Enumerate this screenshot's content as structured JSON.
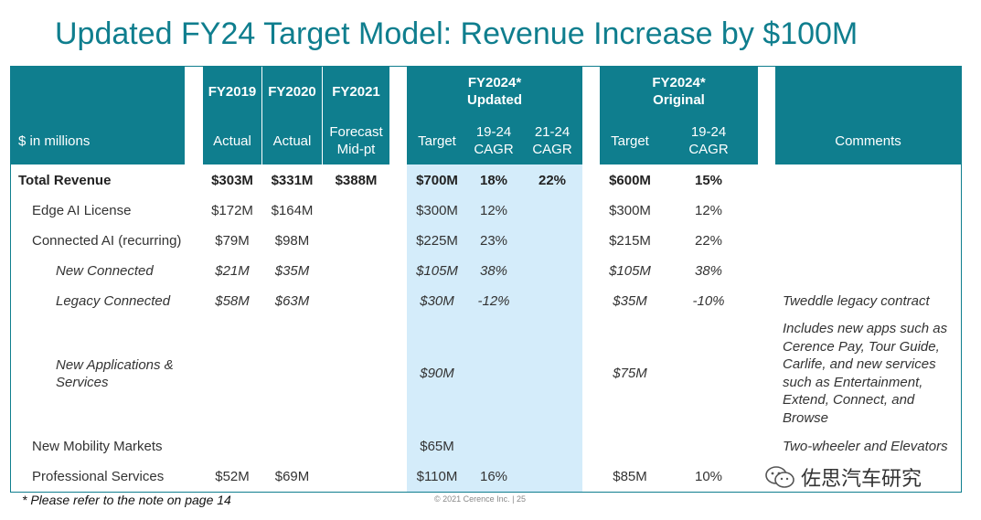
{
  "title": "Updated FY24 Target Model: Revenue Increase by $100M",
  "header": {
    "units_label": "$ in millions",
    "fy2019": "FY2019",
    "fy2020": "FY2020",
    "fy2021": "FY2021",
    "fy2024_updated": "FY2024*\nUpdated",
    "fy2024_original": "FY2024*\nOriginal",
    "actual_2019": "Actual",
    "actual_2020": "Actual",
    "forecast": "Forecast\nMid-pt",
    "target_updated": "Target",
    "cagr_19_24_updated": "19-24\nCAGR",
    "cagr_21_24_updated": "21-24\nCAGR",
    "target_original": "Target",
    "cagr_19_24_original": "19-24\nCAGR",
    "comments": "Comments"
  },
  "rows": [
    {
      "label": "Total Revenue",
      "fy19": "$303M",
      "fy20": "$331M",
      "fy21": "$388M",
      "tgt": "$700M",
      "c1924": "18%",
      "c2124": "22%",
      "otgt": "$600M",
      "oc": "15%",
      "comment": ""
    },
    {
      "label": "Edge AI License",
      "fy19": "$172M",
      "fy20": "$164M",
      "fy21": "",
      "tgt": "$300M",
      "c1924": "12%",
      "c2124": "",
      "otgt": "$300M",
      "oc": "12%",
      "comment": ""
    },
    {
      "label": "Connected AI (recurring)",
      "fy19": "$79M",
      "fy20": "$98M",
      "fy21": "",
      "tgt": "$225M",
      "c1924": "23%",
      "c2124": "",
      "otgt": "$215M",
      "oc": "22%",
      "comment": ""
    },
    {
      "label": "New Connected",
      "fy19": "$21M",
      "fy20": "$35M",
      "fy21": "",
      "tgt": "$105M",
      "c1924": "38%",
      "c2124": "",
      "otgt": "$105M",
      "oc": "38%",
      "comment": ""
    },
    {
      "label": "Legacy Connected",
      "fy19": "$58M",
      "fy20": "$63M",
      "fy21": "",
      "tgt": "$30M",
      "c1924": "-12%",
      "c2124": "",
      "otgt": "$35M",
      "oc": "-10%",
      "comment": "Tweddle legacy contract"
    },
    {
      "label": "New Applications &\nServices",
      "fy19": "",
      "fy20": "",
      "fy21": "",
      "tgt": "$90M",
      "c1924": "",
      "c2124": "",
      "otgt": "$75M",
      "oc": "",
      "comment": "Includes new apps such as\nCerence Pay, Tour Guide,\nCarlife, and new services\nsuch as Entertainment,\nExtend, Connect, and\nBrowse"
    },
    {
      "label": "New Mobility Markets",
      "fy19": "",
      "fy20": "",
      "fy21": "",
      "tgt": "$65M",
      "c1924": "",
      "c2124": "",
      "otgt": "",
      "oc": "",
      "comment": "Two-wheeler and Elevators"
    },
    {
      "label": "Professional Services",
      "fy19": "$52M",
      "fy20": "$69M",
      "fy21": "",
      "tgt": "$110M",
      "c1924": "16%",
      "c2124": "",
      "otgt": "$85M",
      "oc": "10%",
      "comment": ""
    }
  ],
  "footnote": "* Please refer to the note on page 14",
  "copyright": "© 2021 Cerence Inc.  |  25",
  "watermark": "佐思汽车研究",
  "colors": {
    "header": "#0f7e8e",
    "shade": "#d4ecfa",
    "title": "#0f7e8e"
  }
}
